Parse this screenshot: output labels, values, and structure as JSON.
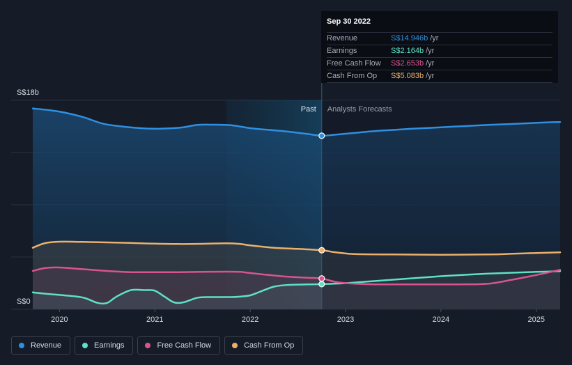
{
  "chart_data": {
    "type": "line",
    "y_axis": {
      "min": 0,
      "max": 18,
      "unit": "S$b",
      "top_label": "S$18b",
      "bottom_label": "S$0"
    },
    "x_axis": {
      "min": 2019.72,
      "max": 2025.25,
      "ticks": [
        "2020",
        "2021",
        "2022",
        "2023",
        "2024",
        "2025"
      ],
      "tick_values": [
        2020,
        2021,
        2022,
        2023,
        2024,
        2025
      ]
    },
    "past_label": "Past",
    "forecast_label": "Analysts Forecasts",
    "divider_x": 2022.75,
    "past_shade_start": 2021.75,
    "series": [
      {
        "name": "Revenue",
        "color": "#2f8fe0",
        "marker_value": 14.946,
        "points": [
          [
            2019.72,
            17.3
          ],
          [
            2019.9,
            17.15
          ],
          [
            2020.05,
            16.95
          ],
          [
            2020.25,
            16.55
          ],
          [
            2020.45,
            16.0
          ],
          [
            2020.65,
            15.75
          ],
          [
            2020.85,
            15.6
          ],
          [
            2021.0,
            15.55
          ],
          [
            2021.15,
            15.58
          ],
          [
            2021.3,
            15.68
          ],
          [
            2021.45,
            15.88
          ],
          [
            2021.6,
            15.9
          ],
          [
            2021.8,
            15.85
          ],
          [
            2022.0,
            15.6
          ],
          [
            2022.2,
            15.45
          ],
          [
            2022.4,
            15.3
          ],
          [
            2022.6,
            15.1
          ],
          [
            2022.75,
            14.95
          ],
          [
            2022.9,
            15.05
          ],
          [
            2023.1,
            15.2
          ],
          [
            2023.3,
            15.35
          ],
          [
            2023.5,
            15.45
          ],
          [
            2023.7,
            15.55
          ],
          [
            2023.9,
            15.63
          ],
          [
            2024.1,
            15.72
          ],
          [
            2024.3,
            15.8
          ],
          [
            2024.5,
            15.88
          ],
          [
            2024.7,
            15.95
          ],
          [
            2024.9,
            16.02
          ],
          [
            2025.1,
            16.1
          ],
          [
            2025.25,
            16.13
          ]
        ]
      },
      {
        "name": "Earnings",
        "color": "#5fe0c7",
        "marker_value": 2.164,
        "points": [
          [
            2019.72,
            1.45
          ],
          [
            2019.9,
            1.3
          ],
          [
            2020.05,
            1.2
          ],
          [
            2020.25,
            1.0
          ],
          [
            2020.4,
            0.55
          ],
          [
            2020.5,
            0.55
          ],
          [
            2020.6,
            1.1
          ],
          [
            2020.75,
            1.65
          ],
          [
            2020.9,
            1.65
          ],
          [
            2021.0,
            1.6
          ],
          [
            2021.1,
            1.1
          ],
          [
            2021.2,
            0.6
          ],
          [
            2021.3,
            0.6
          ],
          [
            2021.45,
            1.0
          ],
          [
            2021.6,
            1.05
          ],
          [
            2021.8,
            1.05
          ],
          [
            2021.9,
            1.1
          ],
          [
            2022.0,
            1.2
          ],
          [
            2022.1,
            1.5
          ],
          [
            2022.25,
            1.95
          ],
          [
            2022.4,
            2.1
          ],
          [
            2022.6,
            2.14
          ],
          [
            2022.75,
            2.164
          ],
          [
            2023.0,
            2.25
          ],
          [
            2023.25,
            2.4
          ],
          [
            2023.5,
            2.55
          ],
          [
            2023.75,
            2.7
          ],
          [
            2024.0,
            2.85
          ],
          [
            2024.25,
            2.97
          ],
          [
            2024.5,
            3.07
          ],
          [
            2024.75,
            3.15
          ],
          [
            2025.0,
            3.22
          ],
          [
            2025.25,
            3.28
          ]
        ]
      },
      {
        "name": "Free Cash Flow",
        "color": "#d9548e",
        "marker_value": 2.653,
        "points": [
          [
            2019.72,
            3.3
          ],
          [
            2019.85,
            3.55
          ],
          [
            2020.0,
            3.6
          ],
          [
            2020.25,
            3.45
          ],
          [
            2020.5,
            3.3
          ],
          [
            2020.75,
            3.2
          ],
          [
            2021.0,
            3.2
          ],
          [
            2021.25,
            3.2
          ],
          [
            2021.5,
            3.22
          ],
          [
            2021.75,
            3.24
          ],
          [
            2021.9,
            3.22
          ],
          [
            2022.0,
            3.12
          ],
          [
            2022.2,
            2.95
          ],
          [
            2022.4,
            2.8
          ],
          [
            2022.6,
            2.72
          ],
          [
            2022.75,
            2.653
          ],
          [
            2022.9,
            2.35
          ],
          [
            2023.1,
            2.2
          ],
          [
            2023.3,
            2.15
          ],
          [
            2023.6,
            2.15
          ],
          [
            2023.9,
            2.15
          ],
          [
            2024.2,
            2.15
          ],
          [
            2024.4,
            2.16
          ],
          [
            2024.55,
            2.25
          ],
          [
            2024.75,
            2.55
          ],
          [
            2025.0,
            2.95
          ],
          [
            2025.25,
            3.4
          ]
        ]
      },
      {
        "name": "Cash From Op",
        "color": "#ecb06a",
        "marker_value": 5.083,
        "points": [
          [
            2019.72,
            5.3
          ],
          [
            2019.85,
            5.7
          ],
          [
            2020.0,
            5.82
          ],
          [
            2020.25,
            5.8
          ],
          [
            2020.5,
            5.76
          ],
          [
            2020.75,
            5.72
          ],
          [
            2021.0,
            5.65
          ],
          [
            2021.25,
            5.62
          ],
          [
            2021.5,
            5.64
          ],
          [
            2021.75,
            5.68
          ],
          [
            2021.9,
            5.62
          ],
          [
            2022.0,
            5.5
          ],
          [
            2022.25,
            5.3
          ],
          [
            2022.5,
            5.2
          ],
          [
            2022.75,
            5.083
          ],
          [
            2022.9,
            4.9
          ],
          [
            2023.1,
            4.75
          ],
          [
            2023.5,
            4.72
          ],
          [
            2024.0,
            4.7
          ],
          [
            2024.5,
            4.72
          ],
          [
            2024.75,
            4.78
          ],
          [
            2025.0,
            4.85
          ],
          [
            2025.25,
            4.9
          ]
        ]
      }
    ]
  },
  "tooltip": {
    "date": "Sep 30 2022",
    "rows": [
      {
        "name": "Revenue",
        "value": "S$14.946b",
        "unit": "/yr",
        "color": "#2f8fe0"
      },
      {
        "name": "Earnings",
        "value": "S$2.164b",
        "unit": "/yr",
        "color": "#5fe0c7"
      },
      {
        "name": "Free Cash Flow",
        "value": "S$2.653b",
        "unit": "/yr",
        "color": "#d9548e"
      },
      {
        "name": "Cash From Op",
        "value": "S$5.083b",
        "unit": "/yr",
        "color": "#ecb06a"
      }
    ]
  },
  "legend": [
    {
      "label": "Revenue",
      "color": "#2f8fe0"
    },
    {
      "label": "Earnings",
      "color": "#5fe0c7"
    },
    {
      "label": "Free Cash Flow",
      "color": "#d9548e"
    },
    {
      "label": "Cash From Op",
      "color": "#ecb06a"
    }
  ]
}
